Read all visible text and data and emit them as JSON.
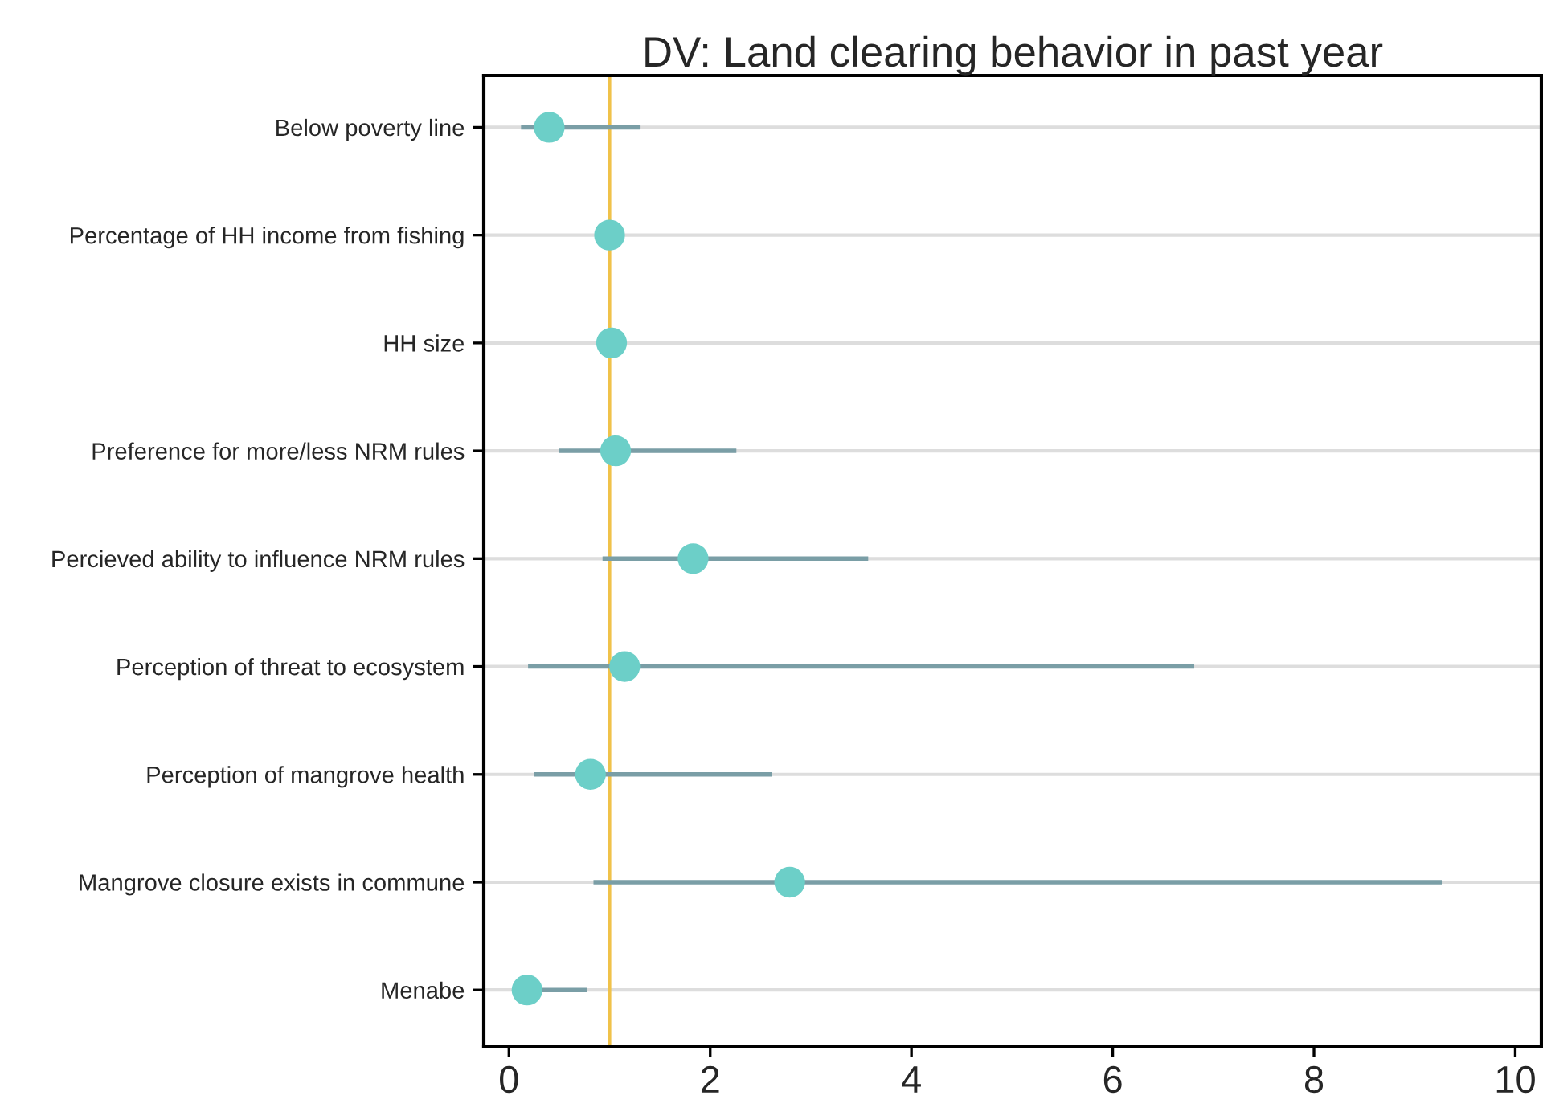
{
  "chart_data": {
    "type": "scatter",
    "title": "DV: Land clearing behavior in past year",
    "categories": [
      "Below poverty line",
      "Percentage of HH income from fishing",
      "HH size",
      "Preference for more/less NRM rules",
      "Percieved ability to influence NRM rules",
      "Perception of threat to ecosystem",
      "Perception of mangrove health",
      "Mangrove closure exists in commune",
      "Menabe"
    ],
    "orientation": "horizontal",
    "series": [
      {
        "color": "#6ccfc8",
        "values": [
          0.4,
          1.0,
          1.02,
          1.06,
          1.83,
          1.15,
          0.81,
          2.79,
          0.18
        ],
        "errors": [
          [
            0.12,
            1.3
          ],
          null,
          null,
          [
            0.5,
            2.26
          ],
          [
            0.93,
            3.57
          ],
          [
            0.19,
            6.81
          ],
          [
            0.25,
            2.61
          ],
          [
            0.84,
            9.27
          ],
          [
            0.04,
            0.78
          ]
        ]
      }
    ],
    "xlim": [
      -0.25,
      10.26
    ],
    "xticks": [
      0,
      2,
      4,
      6,
      8,
      10
    ],
    "ref_lines": [
      {
        "axis": "x",
        "value": 1,
        "color": "#f0c24a"
      }
    ],
    "grid": "y",
    "marker": "circle"
  }
}
